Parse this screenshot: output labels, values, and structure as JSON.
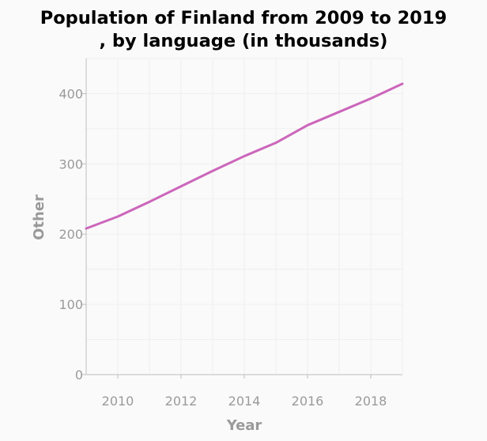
{
  "chart_data": {
    "type": "line",
    "title": "Population of Finland from 2009 to 2019, by language (in thousands)",
    "title_lines": [
      "Population of Finland from 2009 to 2019",
      ", by language (in thousands)"
    ],
    "xlabel": "Year",
    "ylabel": "Other",
    "xlim": [
      2009,
      2019
    ],
    "ylim": [
      0,
      450
    ],
    "x_ticks": [
      2010,
      2012,
      2014,
      2016,
      2018
    ],
    "y_ticks": [
      0,
      100,
      200,
      300,
      400
    ],
    "grid": true,
    "series": [
      {
        "color": "#cc66bb",
        "x": [
          2009,
          2010,
          2011,
          2012,
          2013,
          2014,
          2015,
          2016,
          2017,
          2018,
          2019
        ],
        "y": [
          208,
          225,
          246,
          268,
          290,
          311,
          330,
          355,
          374,
          393,
          414
        ]
      }
    ]
  }
}
